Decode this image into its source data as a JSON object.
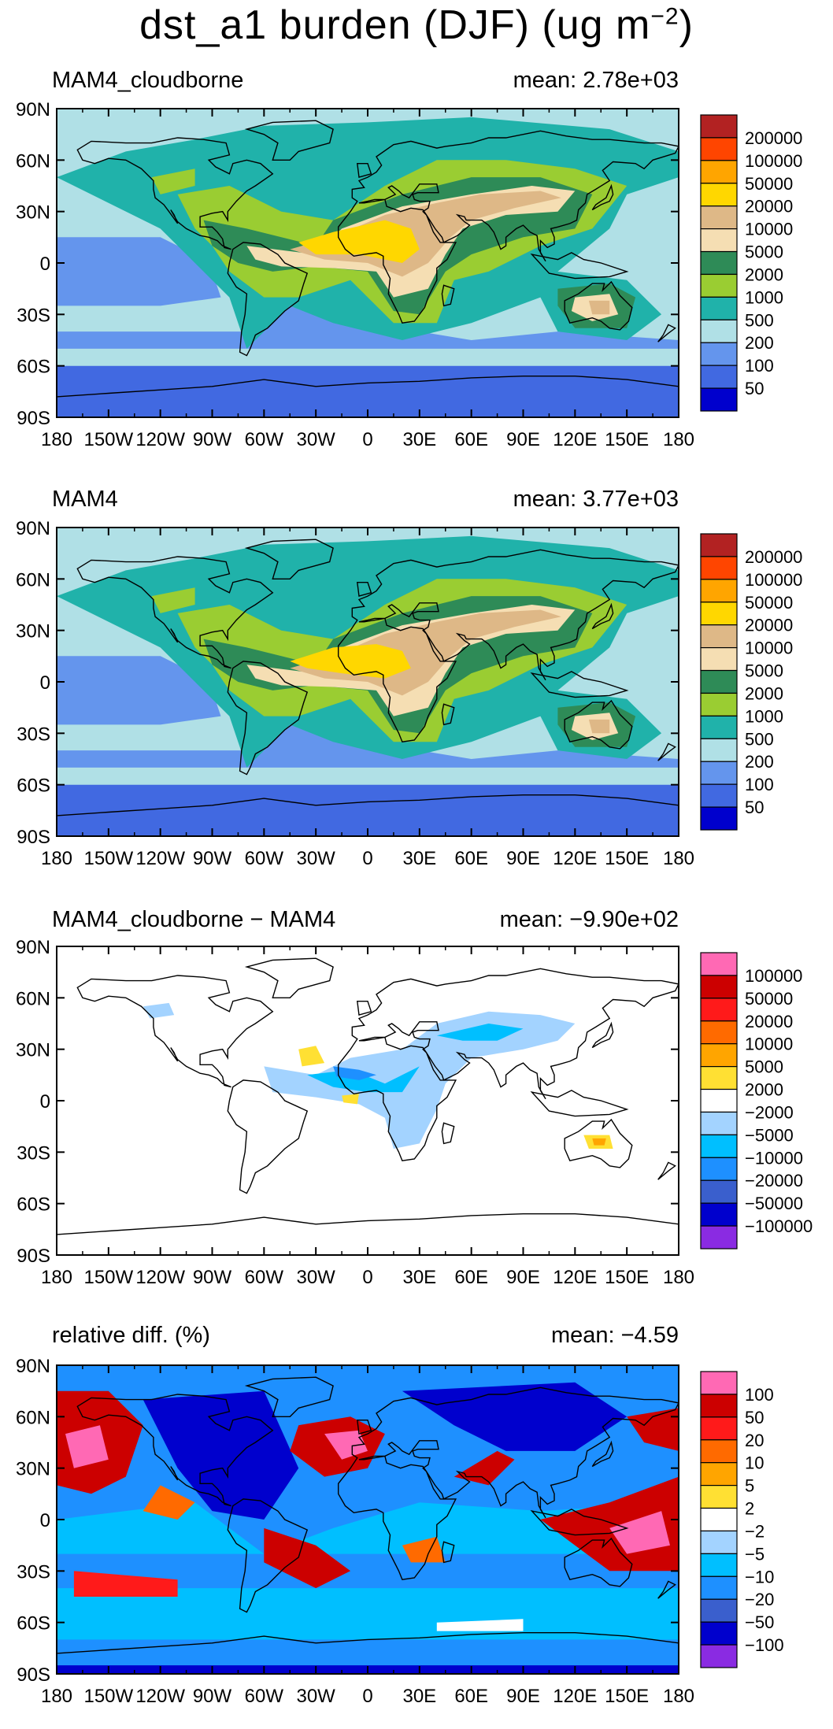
{
  "title_main": "dst_a1 burden (DJF) (ug m",
  "title_exp": "−2",
  "title_close": ")",
  "chart_data": [
    {
      "type": "heatmap",
      "title": "MAM4_cloudborne",
      "mean": "mean: 2.78e+03",
      "xticks": [
        "180",
        "150W",
        "120W",
        "90W",
        "60W",
        "30W",
        "0",
        "30E",
        "60E",
        "90E",
        "120E",
        "150E",
        "180"
      ],
      "yticks": [
        "90N",
        "60N",
        "30N",
        "0",
        "30S",
        "60S",
        "90S"
      ],
      "xlim": [
        -180,
        180
      ],
      "ylim": [
        -90,
        90
      ],
      "colorbar": [
        "200000",
        "100000",
        "50000",
        "20000",
        "10000",
        "5000",
        "2000",
        "1000",
        "500",
        "200",
        "100",
        "50"
      ],
      "colors": [
        "#b22222",
        "#ff4500",
        "#ffa500",
        "#ffd700",
        "#deb887",
        "#f5deb3",
        "#2e8b57",
        "#9acd32",
        "#20b2aa",
        "#b0e0e6",
        "#6495ed",
        "#4169e1",
        "#0000cd"
      ]
    },
    {
      "type": "heatmap",
      "title": "MAM4",
      "mean": "mean: 3.77e+03",
      "xticks": [
        "180",
        "150W",
        "120W",
        "90W",
        "60W",
        "30W",
        "0",
        "30E",
        "60E",
        "90E",
        "120E",
        "150E",
        "180"
      ],
      "yticks": [
        "90N",
        "60N",
        "30N",
        "0",
        "30S",
        "60S",
        "90S"
      ],
      "xlim": [
        -180,
        180
      ],
      "ylim": [
        -90,
        90
      ],
      "colorbar": [
        "200000",
        "100000",
        "50000",
        "20000",
        "10000",
        "5000",
        "2000",
        "1000",
        "500",
        "200",
        "100",
        "50"
      ],
      "colors": [
        "#b22222",
        "#ff4500",
        "#ffa500",
        "#ffd700",
        "#deb887",
        "#f5deb3",
        "#2e8b57",
        "#9acd32",
        "#20b2aa",
        "#b0e0e6",
        "#6495ed",
        "#4169e1",
        "#0000cd"
      ]
    },
    {
      "type": "heatmap",
      "title": "MAM4_cloudborne − MAM4",
      "mean": "mean: −9.90e+02",
      "xticks": [
        "180",
        "150W",
        "120W",
        "90W",
        "60W",
        "30W",
        "0",
        "30E",
        "60E",
        "90E",
        "120E",
        "150E",
        "180"
      ],
      "yticks": [
        "90N",
        "60N",
        "30N",
        "0",
        "30S",
        "60S",
        "90S"
      ],
      "xlim": [
        -180,
        180
      ],
      "ylim": [
        -90,
        90
      ],
      "colorbar": [
        "100000",
        "50000",
        "20000",
        "10000",
        "5000",
        "2000",
        "−2000",
        "−5000",
        "−10000",
        "−20000",
        "−50000",
        "−100000"
      ],
      "colors": [
        "#ff69b4",
        "#cc0000",
        "#ff1a1a",
        "#ff6a00",
        "#ffa500",
        "#ffe033",
        "#ffffff",
        "#a3d3ff",
        "#00bfff",
        "#1e90ff",
        "#3a5fcd",
        "#0000cd",
        "#8a2be2"
      ]
    },
    {
      "type": "heatmap",
      "title": "relative diff. (%)",
      "mean": "mean: −4.59",
      "xticks": [
        "180",
        "150W",
        "120W",
        "90W",
        "60W",
        "30W",
        "0",
        "30E",
        "60E",
        "90E",
        "120E",
        "150E",
        "180"
      ],
      "yticks": [
        "90N",
        "60N",
        "30N",
        "0",
        "30S",
        "60S",
        "90S"
      ],
      "xlim": [
        -180,
        180
      ],
      "ylim": [
        -90,
        90
      ],
      "colorbar": [
        "100",
        "50",
        "20",
        "10",
        "5",
        "2",
        "−2",
        "−5",
        "−10",
        "−20",
        "−50",
        "−100"
      ],
      "colors": [
        "#ff69b4",
        "#cc0000",
        "#ff1a1a",
        "#ff6a00",
        "#ffa500",
        "#ffe033",
        "#ffffff",
        "#a3d3ff",
        "#00bfff",
        "#1e90ff",
        "#3a5fcd",
        "#0000cd",
        "#8a2be2"
      ]
    }
  ]
}
